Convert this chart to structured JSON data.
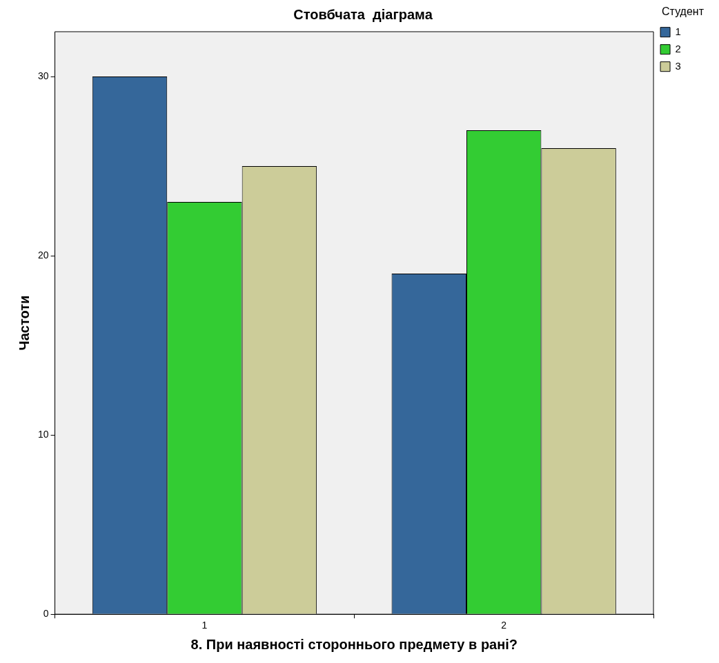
{
  "chart_data": {
    "type": "bar",
    "title": "Стовбчата  діаграма",
    "xlabel": "8. При наявності стороннього предмету в рані?",
    "ylabel": "Частоти",
    "legend_title": "Студент",
    "legend": "top right",
    "grid": false,
    "categories": [
      "1",
      "2"
    ],
    "series": [
      {
        "name": "1",
        "color": "#35679a",
        "values": [
          30,
          19
        ]
      },
      {
        "name": "2",
        "color": "#33cc33",
        "values": [
          23,
          27
        ]
      },
      {
        "name": "3",
        "color": "#cccc99",
        "values": [
          25,
          26
        ]
      }
    ],
    "ylim": [
      0,
      32.5
    ],
    "yticks": [
      0,
      10,
      20,
      30
    ]
  }
}
